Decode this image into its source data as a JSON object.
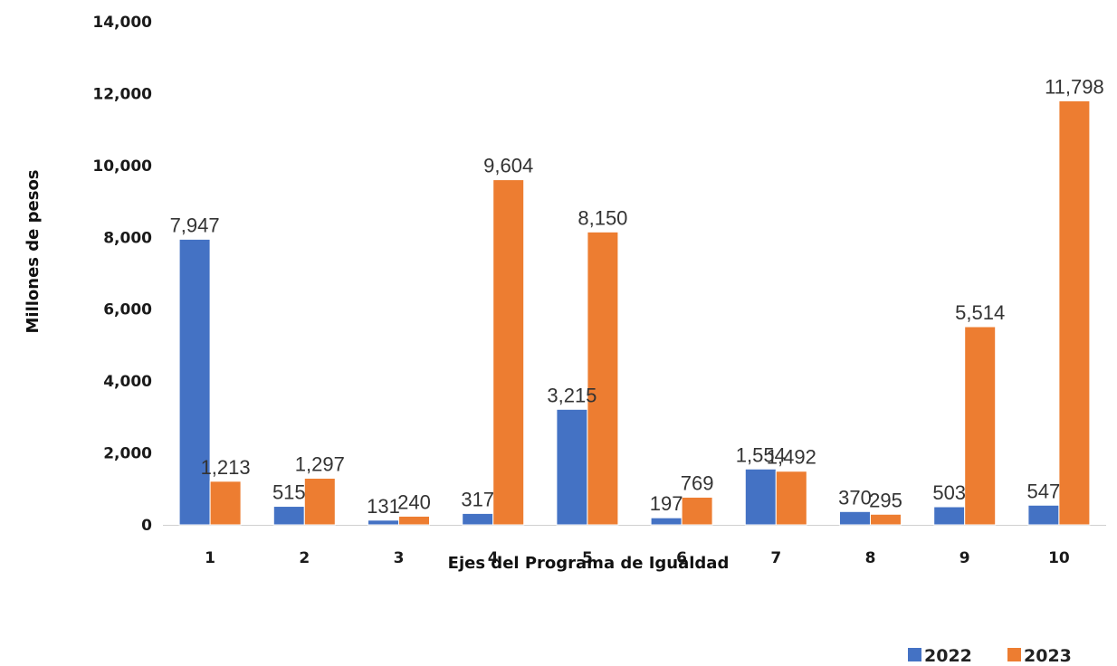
{
  "chart_data": {
    "type": "bar",
    "title": "",
    "xlabel": "Ejes del Programa de Igualdad",
    "ylabel": "Millones de pesos",
    "categories": [
      "1",
      "2",
      "3",
      "4",
      "5",
      "6",
      "7",
      "8",
      "9",
      "10"
    ],
    "series": [
      {
        "name": "2022",
        "color": "#4472C4",
        "values": [
          7947,
          515,
          131,
          317,
          3215,
          197,
          1554,
          370,
          503,
          547
        ],
        "labels": [
          "7,947",
          "515",
          "131",
          "317",
          "3,215",
          "197",
          "1,554",
          "370",
          "503",
          "547"
        ]
      },
      {
        "name": "2023",
        "color": "#ED7D31",
        "values": [
          1213,
          1297,
          240,
          9604,
          8150,
          769,
          1492,
          295,
          5514,
          11798
        ],
        "labels": [
          "1,213",
          "1,297",
          "240",
          "9,604",
          "8,150",
          "769",
          "1,492",
          "295",
          "5,514",
          "11,798"
        ]
      }
    ],
    "ylim": [
      0,
      14000
    ],
    "yticks": [
      "0",
      "2,000",
      "4,000",
      "6,000",
      "8,000",
      "10,000",
      "12,000",
      "14,000"
    ],
    "grid": false,
    "legend": "bottom-right"
  }
}
